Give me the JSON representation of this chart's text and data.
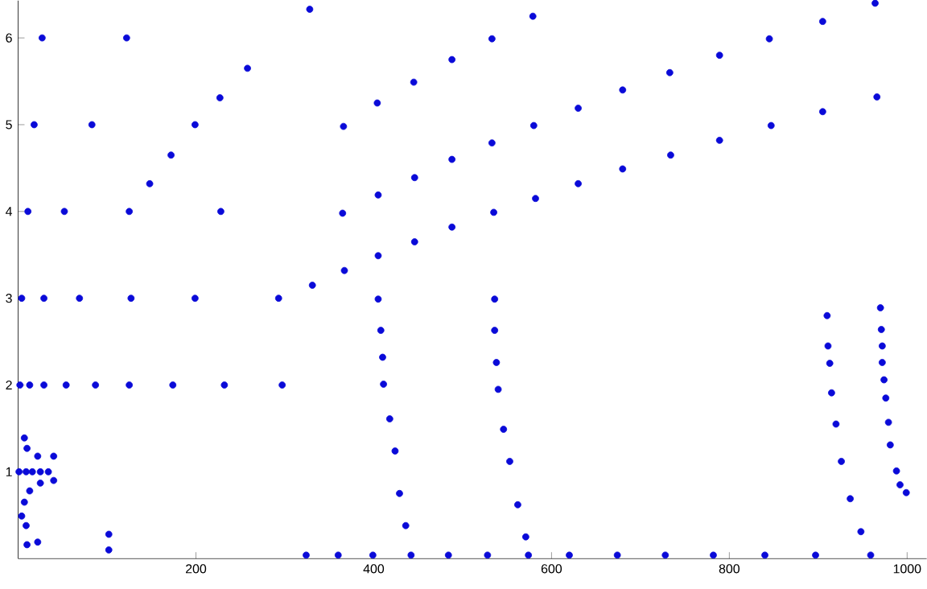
{
  "chart_data": {
    "type": "scatter",
    "color": "#0a0ad8",
    "marker": "circle",
    "grid": false,
    "xlim": [
      0,
      1022
    ],
    "ylim": [
      0,
      6.43
    ],
    "xticks": [
      200,
      400,
      600,
      800,
      1000
    ],
    "yticks": [
      1,
      2,
      3,
      4,
      5,
      6
    ],
    "x": [
      27,
      122,
      18,
      83,
      199,
      11,
      52,
      125,
      228,
      4,
      29,
      69,
      127,
      199,
      293,
      2,
      13,
      29,
      54,
      87,
      125,
      174,
      232,
      297,
      1,
      9,
      16,
      25,
      34,
      148,
      172,
      258,
      227,
      328,
      366,
      404,
      445,
      488,
      533,
      579,
      365,
      405,
      446,
      488,
      533,
      580,
      630,
      680,
      733,
      789,
      845,
      905,
      964,
      680,
      734,
      789,
      847,
      905,
      966,
      630,
      582,
      535,
      488,
      446,
      405,
      367,
      331,
      970,
      971,
      972,
      972,
      974,
      976,
      979,
      981,
      988,
      992,
      999,
      910,
      911,
      913,
      915,
      920,
      926,
      936,
      948,
      959,
      405,
      408,
      410,
      411,
      418,
      424,
      429,
      436,
      442,
      536,
      536,
      538,
      540,
      546,
      553,
      562,
      571,
      574,
      10,
      22,
      9,
      4,
      7,
      13,
      25,
      40,
      22,
      10,
      7,
      40,
      102,
      102,
      324,
      360,
      399,
      484,
      528,
      620,
      674,
      728,
      782,
      840,
      897
    ],
    "values": [
      6.0,
      6.0,
      5.0,
      5.0,
      5.0,
      4.0,
      4.0,
      4.0,
      4.0,
      3.0,
      3.0,
      3.0,
      3.0,
      3.0,
      3.0,
      2.0,
      2.0,
      2.0,
      2.0,
      2.0,
      2.0,
      2.0,
      2.0,
      2.0,
      1.0,
      1.0,
      1.0,
      1.0,
      1.0,
      4.32,
      4.65,
      5.65,
      5.31,
      6.33,
      4.98,
      5.25,
      5.49,
      5.75,
      5.99,
      6.25,
      3.98,
      4.19,
      4.39,
      4.6,
      4.79,
      4.99,
      5.19,
      5.4,
      5.6,
      5.8,
      5.99,
      6.19,
      6.4,
      4.49,
      4.65,
      4.82,
      4.99,
      5.15,
      5.32,
      4.32,
      4.15,
      3.99,
      3.82,
      3.65,
      3.49,
      3.32,
      3.15,
      2.89,
      2.64,
      2.45,
      2.26,
      2.06,
      1.85,
      1.57,
      1.31,
      1.01,
      0.85,
      0.76,
      2.8,
      2.45,
      2.25,
      1.91,
      1.55,
      1.12,
      0.69,
      0.31,
      0.04,
      2.99,
      2.63,
      2.32,
      2.01,
      1.61,
      1.24,
      0.75,
      0.38,
      0.04,
      2.99,
      2.63,
      2.26,
      1.95,
      1.49,
      1.12,
      0.62,
      0.25,
      0.04,
      0.16,
      0.19,
      0.38,
      0.49,
      0.65,
      0.78,
      0.87,
      0.9,
      1.18,
      1.27,
      1.39,
      1.18,
      0.1,
      0.28,
      0.04,
      0.04,
      0.04,
      0.04,
      0.04,
      0.04,
      0.04,
      0.04,
      0.04,
      0.04,
      0.04
    ]
  }
}
